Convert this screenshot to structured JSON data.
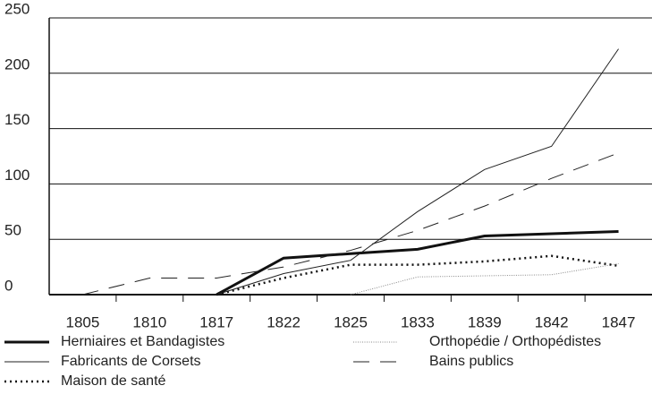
{
  "chart_data": {
    "type": "line",
    "categories": [
      "1805",
      "1810",
      "1817",
      "1822",
      "1825",
      "1833",
      "1839",
      "1842",
      "1847"
    ],
    "ylim": [
      0,
      250
    ],
    "yticks": [
      0,
      50,
      100,
      150,
      200,
      250
    ],
    "grid": true,
    "series": [
      {
        "name": "Herniaires et Bandagistes",
        "color": "#111111",
        "width": 3,
        "dash": "",
        "values": [
          null,
          null,
          0,
          33,
          37,
          41,
          53,
          55,
          57
        ]
      },
      {
        "name": "Fabricants de Corsets",
        "color": "#222222",
        "width": 1,
        "dash": "",
        "values": [
          null,
          null,
          0,
          19,
          31,
          75,
          113,
          134,
          222
        ]
      },
      {
        "name": "Maison de santé",
        "color": "#111111",
        "width": 2.5,
        "dash": "2 4",
        "values": [
          null,
          null,
          0,
          15,
          27,
          27,
          30,
          35,
          26
        ]
      },
      {
        "name": "Orthopédie / Orthopédistes",
        "color": "#888888",
        "width": 1,
        "dash": "1 1.5",
        "values": [
          null,
          null,
          null,
          null,
          0,
          16,
          17,
          18,
          28
        ]
      },
      {
        "name": "Bains publics",
        "color": "#222222",
        "width": 1,
        "dash": "18 12",
        "values": [
          0,
          15,
          15,
          25,
          40,
          58,
          80,
          105,
          128
        ]
      }
    ]
  }
}
